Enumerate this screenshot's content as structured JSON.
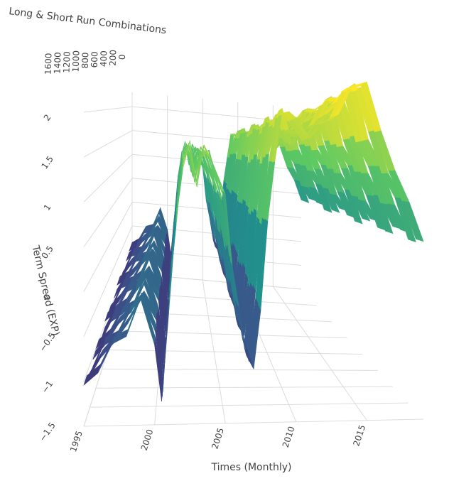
{
  "chart_data": {
    "type": "surface",
    "colorscale": "viridis",
    "colors": [
      "#440154",
      "#3b528b",
      "#21918c",
      "#5ec962",
      "#fde725"
    ],
    "axes": {
      "x": {
        "title": "Times (Monthly)",
        "ticks": [
          "1995",
          "2000",
          "2005",
          "2010",
          "2015"
        ],
        "range": [
          1995,
          2019
        ]
      },
      "y": {
        "title": "Long & Short Run Combinations",
        "ticks": [
          "1600",
          "1400",
          "1200",
          "1000",
          "800",
          "600",
          "400",
          "200",
          "0"
        ],
        "range": [
          0,
          1600
        ]
      },
      "z": {
        "title": "Term Spread (EXP)",
        "ticks": [
          "2",
          "1.5",
          "1",
          "0.5",
          "0",
          "−0.5",
          "−1",
          "−1.5"
        ],
        "range": [
          -1.5,
          2.3
        ]
      }
    },
    "profile": {
      "x": [
        1995,
        1996,
        1997,
        1998,
        1999,
        2000,
        2000.5,
        2001,
        2001.5,
        2002,
        2002.5,
        2003,
        2003.5,
        2004,
        2005,
        2005.5,
        2006,
        2006.5,
        2007,
        2007.5,
        2008,
        2008.5,
        2009,
        2009.5,
        2010,
        2011,
        2012,
        2013,
        2014,
        2015,
        2016,
        2017,
        2018,
        2019
      ],
      "z": [
        -1.1,
        -0.85,
        -0.65,
        -0.45,
        -0.15,
        -0.55,
        -1.3,
        -0.2,
        0.7,
        1.4,
        1.6,
        1.2,
        1.55,
        1.5,
        1.0,
        0.3,
        -0.3,
        -0.7,
        -0.95,
        -0.2,
        0.7,
        1.45,
        1.9,
        2.0,
        1.85,
        1.7,
        1.8,
        1.95,
        2.2,
        2.3,
        1.7,
        1.3,
        0.9,
        0.5
      ]
    }
  }
}
